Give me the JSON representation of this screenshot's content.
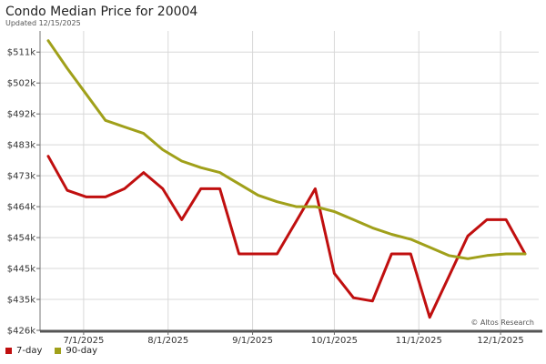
{
  "chart_data": {
    "type": "line",
    "title": "Condo Median Price for 20004",
    "subtitle": "Updated 12/15/2025",
    "annotation": "© Altos Research",
    "xlabel": "",
    "ylabel": "",
    "x_start": "2025-06-15",
    "x_end": "2025-12-15",
    "x_ticks": [
      {
        "date": "2025-07-01",
        "label": "7/1/2025"
      },
      {
        "date": "2025-08-01",
        "label": "8/1/2025"
      },
      {
        "date": "2025-09-01",
        "label": "9/1/2025"
      },
      {
        "date": "2025-10-01",
        "label": "10/1/2025"
      },
      {
        "date": "2025-11-01",
        "label": "11/1/2025"
      },
      {
        "date": "2025-12-01",
        "label": "12/1/2025"
      }
    ],
    "y_ticks": [
      {
        "value": 426,
        "label": "$426k"
      },
      {
        "value": 435.5,
        "label": "$435k"
      },
      {
        "value": 445,
        "label": "$445k"
      },
      {
        "value": 454.5,
        "label": "$454k"
      },
      {
        "value": 464,
        "label": "$464k"
      },
      {
        "value": 473.5,
        "label": "$473k"
      },
      {
        "value": 483,
        "label": "$483k"
      },
      {
        "value": 492.5,
        "label": "$492k"
      },
      {
        "value": 502,
        "label": "$502k"
      },
      {
        "value": 511.5,
        "label": "$511k"
      }
    ],
    "ylim": [
      426,
      518
    ],
    "grid": true,
    "legend_position": "bottom-left",
    "series": [
      {
        "name": "7-day",
        "color": "#c00f0f",
        "points": [
          [
            "2025-06-18",
            479.5
          ],
          [
            "2025-06-25",
            469.0
          ],
          [
            "2025-07-02",
            467.0
          ],
          [
            "2025-07-09",
            467.0
          ],
          [
            "2025-07-16",
            469.5
          ],
          [
            "2025-07-23",
            474.5
          ],
          [
            "2025-07-30",
            469.5
          ],
          [
            "2025-08-06",
            460.0
          ],
          [
            "2025-08-13",
            469.5
          ],
          [
            "2025-08-20",
            469.5
          ],
          [
            "2025-08-27",
            449.5
          ],
          [
            "2025-09-03",
            449.5
          ],
          [
            "2025-09-10",
            449.5
          ],
          [
            "2025-09-17",
            459.5
          ],
          [
            "2025-09-24",
            469.5
          ],
          [
            "2025-10-01",
            443.5
          ],
          [
            "2025-10-08",
            436.0
          ],
          [
            "2025-10-15",
            435.0
          ],
          [
            "2025-10-22",
            449.5
          ],
          [
            "2025-10-29",
            449.5
          ],
          [
            "2025-11-05",
            430.0
          ],
          [
            "2025-11-12",
            442.5
          ],
          [
            "2025-11-19",
            455.0
          ],
          [
            "2025-11-26",
            460.0
          ],
          [
            "2025-12-03",
            460.0
          ],
          [
            "2025-12-10",
            449.5
          ]
        ]
      },
      {
        "name": "90-day",
        "color": "#a0a01a",
        "points": [
          [
            "2025-06-18",
            515.0
          ],
          [
            "2025-06-25",
            506.5
          ],
          [
            "2025-07-02",
            498.5
          ],
          [
            "2025-07-09",
            490.5
          ],
          [
            "2025-07-16",
            488.5
          ],
          [
            "2025-07-23",
            486.5
          ],
          [
            "2025-07-30",
            481.5
          ],
          [
            "2025-08-06",
            478.0
          ],
          [
            "2025-08-13",
            476.0
          ],
          [
            "2025-08-20",
            474.5
          ],
          [
            "2025-08-27",
            471.0
          ],
          [
            "2025-09-03",
            467.5
          ],
          [
            "2025-09-10",
            465.5
          ],
          [
            "2025-09-17",
            464.0
          ],
          [
            "2025-09-24",
            464.0
          ],
          [
            "2025-10-01",
            462.5
          ],
          [
            "2025-10-08",
            460.0
          ],
          [
            "2025-10-15",
            457.5
          ],
          [
            "2025-10-22",
            455.5
          ],
          [
            "2025-10-29",
            454.0
          ],
          [
            "2025-11-05",
            451.5
          ],
          [
            "2025-11-12",
            449.0
          ],
          [
            "2025-11-19",
            448.0
          ],
          [
            "2025-11-26",
            449.0
          ],
          [
            "2025-12-03",
            449.5
          ],
          [
            "2025-12-10",
            449.5
          ]
        ]
      }
    ]
  }
}
